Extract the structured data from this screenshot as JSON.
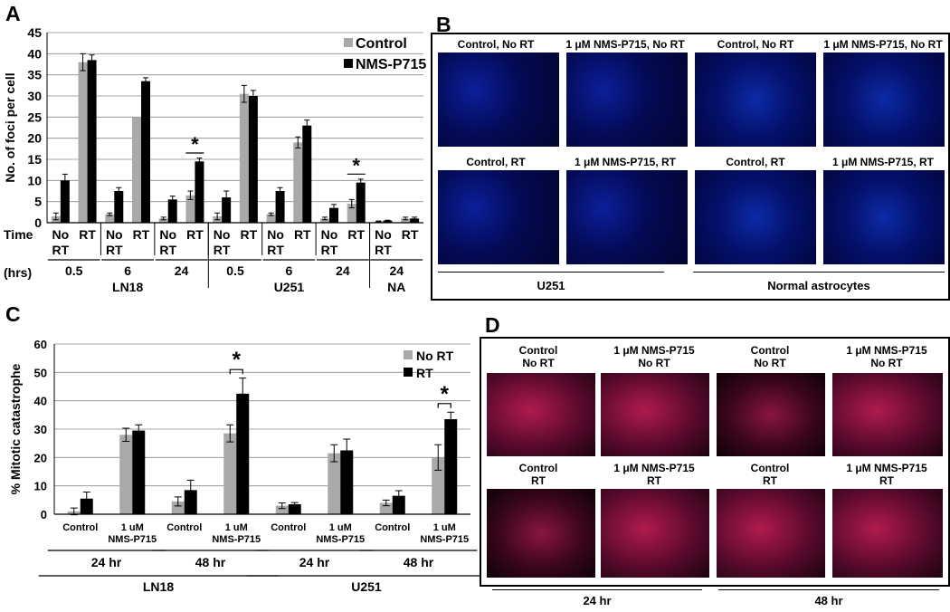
{
  "panels": {
    "a": "A",
    "b": "B",
    "c": "C",
    "d": "D"
  },
  "colors": {
    "gray": "#a9a9a9",
    "black": "#000000"
  },
  "chart_data": [
    {
      "type": "bar",
      "panel": "A",
      "ylabel": "No. of foci per cell",
      "ylim": [
        0,
        45
      ],
      "yticks": [
        0,
        5,
        10,
        15,
        20,
        25,
        30,
        35,
        40,
        45
      ],
      "grid": true,
      "legend_position": "top-right",
      "categories": [
        "No RT",
        "RT",
        "No RT",
        "RT",
        "No RT",
        "RT",
        "No RT",
        "RT",
        "No RT",
        "RT",
        "No RT",
        "RT",
        "No RT",
        "RT"
      ],
      "time_row_label": "Time",
      "hrs_row_label": "(hrs)",
      "time_groups": [
        "0.5",
        "6",
        "24",
        "0.5",
        "6",
        "24",
        "24"
      ],
      "cell_groups": [
        "LN18",
        "U251",
        "NA"
      ],
      "series": [
        {
          "name": "Control",
          "values": [
            1.5,
            38,
            2,
            25,
            1,
            6.5,
            1.5,
            30.5,
            2,
            19,
            1,
            4.5,
            0.3,
            1.0
          ]
        },
        {
          "name": "NMS-P715",
          "values": [
            10,
            38.5,
            7.5,
            33.5,
            5.5,
            14.5,
            6,
            30,
            7.5,
            23,
            3.5,
            9.5,
            0.5,
            1.0
          ]
        }
      ],
      "errors": [
        [
          0.8,
          2,
          0.3,
          0,
          0.3,
          1,
          0.8,
          2,
          0.3,
          1.3,
          0.3,
          1,
          0.1,
          0.3
        ],
        [
          1.5,
          1.2,
          0.8,
          0.8,
          0.8,
          0.8,
          1.5,
          1.3,
          0.8,
          1.3,
          0.8,
          0.8,
          0.1,
          0.3
        ]
      ],
      "significance": "*"
    },
    {
      "type": "bar",
      "panel": "C",
      "ylabel": "% Mitotic catastrophe",
      "ylim": [
        0,
        60
      ],
      "yticks": [
        0,
        10,
        20,
        30,
        40,
        50,
        60
      ],
      "grid": true,
      "legend_position": "top-right",
      "categories": [
        "Control",
        "1 uM NMS-P715",
        "Control",
        "1 uM NMS-P715",
        "Control",
        "1 uM NMS-P715",
        "Control",
        "1 uM NMS-P715"
      ],
      "time_groups": [
        "24 hr",
        "48 hr",
        "24 hr",
        "48 hr"
      ],
      "cell_groups": [
        "LN18",
        "U251"
      ],
      "series": [
        {
          "name": "No RT",
          "values": [
            1,
            28,
            4.5,
            28.5,
            3,
            21.5,
            4,
            20
          ]
        },
        {
          "name": "RT",
          "values": [
            5.5,
            29.5,
            8.5,
            42.5,
            3.5,
            22.5,
            6.5,
            33.5
          ]
        }
      ],
      "errors": [
        [
          1.2,
          2.3,
          1.6,
          3,
          1,
          3,
          1,
          4.5
        ],
        [
          2.3,
          2,
          3.5,
          5.5,
          0.6,
          4,
          1.8,
          2.5
        ]
      ],
      "significance": "*"
    }
  ],
  "panel_b": {
    "top_labels": [
      "Control, No RT",
      "1 μM NMS-P715, No RT",
      "Control, No RT",
      "1 μM NMS-P715, No RT"
    ],
    "bottom_labels": [
      "Control, RT",
      "1 μM NMS-P715, RT",
      "Control, RT",
      "1 μM NMS-P715, RT"
    ],
    "groups": [
      "U251",
      "Normal astrocytes"
    ]
  },
  "panel_d": {
    "top_labels": [
      [
        "Control",
        "No RT"
      ],
      [
        "1 μM NMS-P715",
        "No RT"
      ],
      [
        "Control",
        "No RT"
      ],
      [
        "1 μM NMS-P715",
        "No RT"
      ]
    ],
    "bottom_labels": [
      [
        "Control",
        "RT"
      ],
      [
        "1 μM NMS-P715",
        "RT"
      ],
      [
        "Control",
        "RT"
      ],
      [
        "1 μM NMS-P715",
        "RT"
      ]
    ],
    "groups": [
      "24 hr",
      "48 hr"
    ]
  }
}
